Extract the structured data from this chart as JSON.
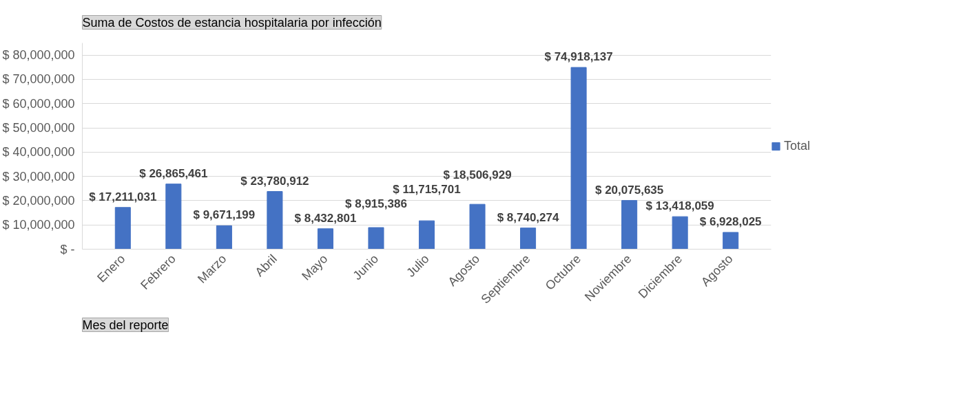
{
  "chart_data": {
    "type": "bar",
    "title": "Suma de Costos de estancia hospitalaria por infección",
    "xlabel": "Mes del reporte",
    "categories": [
      "Enero",
      "Febrero",
      "Marzo",
      "Abril",
      "Mayo",
      "Junio",
      "Julio",
      "Agosto",
      "Septiembre",
      "Octubre",
      "Noviembre",
      "Diciembre",
      "Agosto"
    ],
    "series": [
      {
        "name": "Total",
        "color": "#4472c4",
        "values": [
          17211031,
          26865461,
          9671199,
          23780912,
          8432801,
          8915386,
          11715701,
          18506929,
          8740274,
          74918137,
          20075635,
          13418059,
          6928025
        ]
      }
    ],
    "value_labels": [
      "$ 17,211,031",
      "$ 26,865,461",
      "$ 9,671,199",
      "$ 23,780,912",
      "$ 8,432,801",
      "$ 8,915,386",
      "$ 11,715,701",
      "$ 18,506,929",
      "$ 8,740,274",
      "$ 74,918,137",
      "$ 20,075,635",
      "$ 13,418,059",
      "$ 6,928,025"
    ],
    "ylim": [
      0,
      85000000
    ],
    "yticks": [
      {
        "value": 0,
        "label": "$ -"
      },
      {
        "value": 10000000,
        "label": "$ 10,000,000"
      },
      {
        "value": 20000000,
        "label": "$ 20,000,000"
      },
      {
        "value": 30000000,
        "label": "$ 30,000,000"
      },
      {
        "value": 40000000,
        "label": "$ 40,000,000"
      },
      {
        "value": 50000000,
        "label": "$ 50,000,000"
      },
      {
        "value": 60000000,
        "label": "$ 60,000,000"
      },
      {
        "value": 70000000,
        "label": "$ 70,000,000"
      },
      {
        "value": 80000000,
        "label": "$ 80,000,000"
      }
    ],
    "grid": "y",
    "legend": "right"
  }
}
